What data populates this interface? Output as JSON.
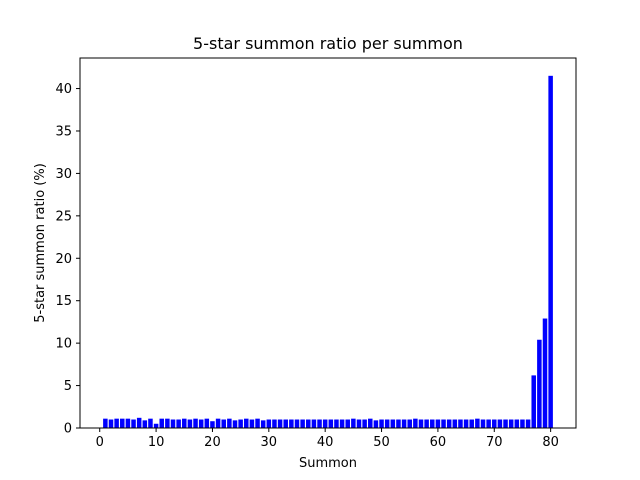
{
  "chart_data": {
    "type": "bar",
    "title": "5-star summon ratio per summon",
    "xlabel": "Summon",
    "ylabel": "5-star summon ratio (%)",
    "xlim": [
      -3.5,
      84.5
    ],
    "ylim": [
      0,
      43.6
    ],
    "xticks": [
      0,
      10,
      20,
      30,
      40,
      50,
      60,
      70,
      80
    ],
    "yticks": [
      0,
      5,
      10,
      15,
      20,
      25,
      30,
      35,
      40
    ],
    "grid": false,
    "bar_color": "#0000ff",
    "x": [
      1,
      2,
      3,
      4,
      5,
      6,
      7,
      8,
      9,
      10,
      11,
      12,
      13,
      14,
      15,
      16,
      17,
      18,
      19,
      20,
      21,
      22,
      23,
      24,
      25,
      26,
      27,
      28,
      29,
      30,
      31,
      32,
      33,
      34,
      35,
      36,
      37,
      38,
      39,
      40,
      41,
      42,
      43,
      44,
      45,
      46,
      47,
      48,
      49,
      50,
      51,
      52,
      53,
      54,
      55,
      56,
      57,
      58,
      59,
      60,
      61,
      62,
      63,
      64,
      65,
      66,
      67,
      68,
      69,
      70,
      71,
      72,
      73,
      74,
      75,
      76,
      77,
      78,
      79,
      80
    ],
    "values": [
      1.1,
      1.0,
      1.1,
      1.1,
      1.1,
      1.0,
      1.2,
      0.9,
      1.1,
      0.5,
      1.1,
      1.1,
      1.0,
      1.0,
      1.1,
      1.0,
      1.1,
      1.0,
      1.1,
      0.8,
      1.1,
      1.0,
      1.1,
      0.9,
      1.0,
      1.1,
      1.0,
      1.1,
      0.9,
      1.0,
      1.0,
      1.0,
      1.0,
      1.0,
      1.0,
      1.0,
      1.0,
      1.0,
      1.0,
      1.0,
      1.0,
      1.0,
      1.0,
      1.0,
      1.1,
      1.0,
      1.0,
      1.1,
      0.9,
      1.0,
      1.0,
      1.0,
      1.0,
      1.0,
      1.0,
      1.1,
      1.0,
      1.0,
      1.0,
      1.0,
      1.0,
      1.0,
      1.0,
      1.0,
      1.0,
      1.0,
      1.1,
      1.0,
      1.0,
      1.0,
      1.0,
      1.0,
      1.0,
      1.0,
      1.0,
      1.0,
      6.2,
      10.4,
      12.9,
      41.5
    ]
  }
}
